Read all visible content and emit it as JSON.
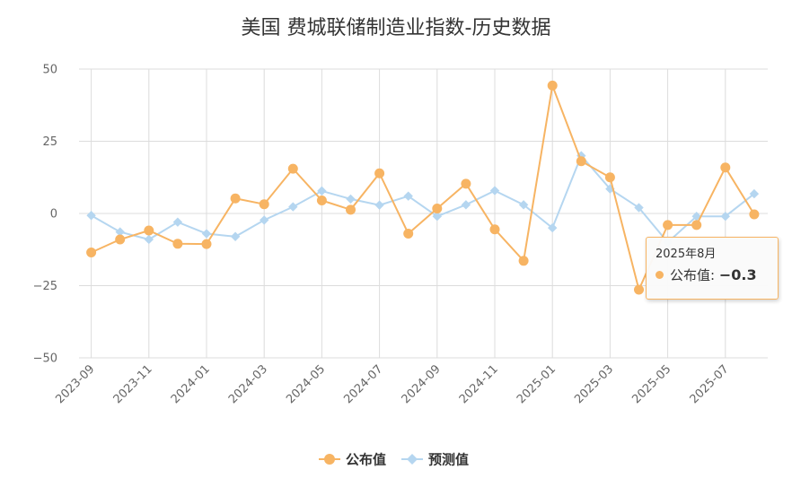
{
  "chart_data": {
    "type": "line",
    "title": "美国 费城联储制造业指数-历史数据",
    "x": [
      "2023-09",
      "2023-10",
      "2023-11",
      "2023-12",
      "2024-01",
      "2024-02",
      "2024-03",
      "2024-04",
      "2024-05",
      "2024-06",
      "2024-07",
      "2024-08",
      "2024-09",
      "2024-10",
      "2024-11",
      "2024-12",
      "2025-01",
      "2025-02",
      "2025-03",
      "2025-04",
      "2025-05",
      "2025-06",
      "2025-07",
      "2025-08"
    ],
    "xtick_labels": [
      "2023-09",
      "2023-11",
      "2024-01",
      "2024-03",
      "2024-05",
      "2024-07",
      "2024-09",
      "2024-11",
      "2025-01",
      "2025-03",
      "2025-05",
      "2025-07"
    ],
    "yticks": [
      "50",
      "25",
      "0",
      "−25",
      "−50"
    ],
    "ylim": [
      -50,
      50
    ],
    "grid": true,
    "legend_position": "bottom",
    "series": [
      {
        "name": "公布值",
        "color": "#f7b463",
        "marker": "circle",
        "values": [
          -13.5,
          -9.0,
          -5.9,
          -10.5,
          -10.6,
          5.2,
          3.2,
          15.5,
          4.5,
          1.3,
          13.9,
          -7.0,
          1.7,
          10.3,
          -5.5,
          -16.4,
          44.3,
          18.1,
          12.5,
          -26.4,
          -4.0,
          -4.0,
          15.9,
          -0.3
        ]
      },
      {
        "name": "预测值",
        "color": "#b5d6f0",
        "marker": "diamond",
        "values": [
          -0.7,
          -6.4,
          -9.0,
          -3.0,
          -7.0,
          -8.0,
          -2.3,
          2.3,
          7.8,
          5.0,
          2.9,
          6.0,
          -1.0,
          3.0,
          7.9,
          3.0,
          -5.0,
          20.0,
          8.5,
          2.0,
          -10.0,
          -1.0,
          -1.0,
          6.8
        ]
      }
    ]
  },
  "tooltip": {
    "date": "2025年8月",
    "series_label": "公布值:",
    "value": "−0.3"
  }
}
